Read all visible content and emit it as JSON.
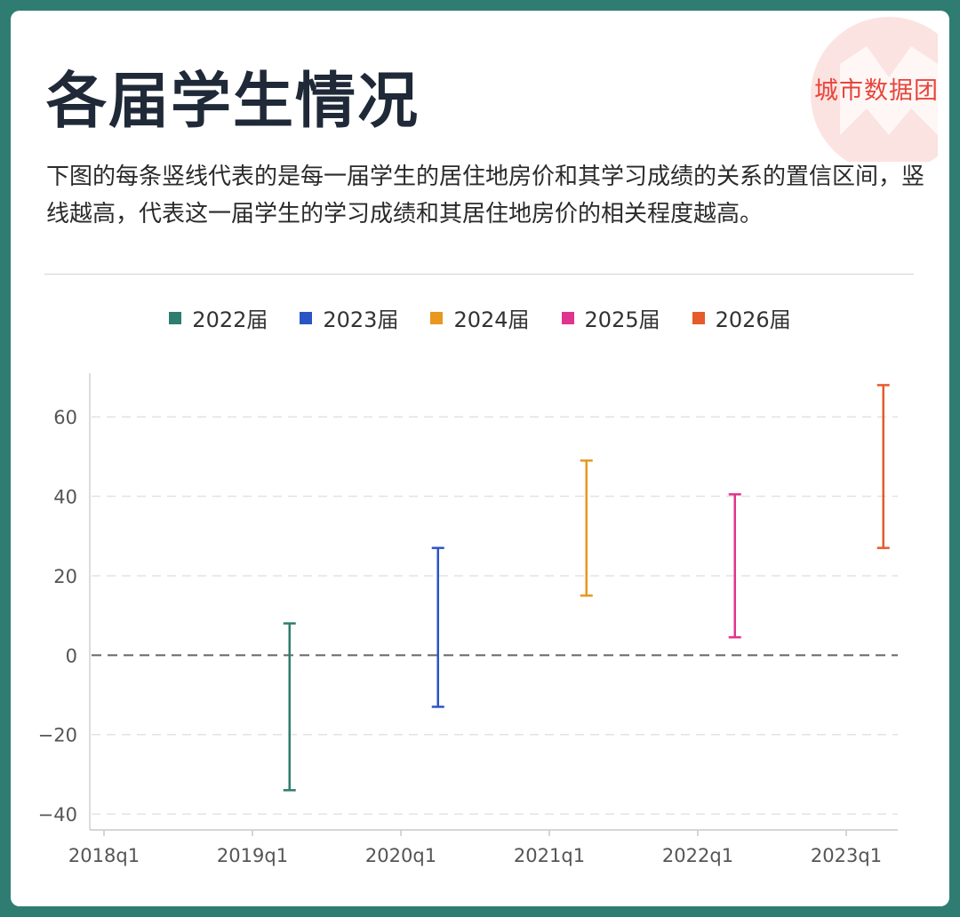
{
  "header": {
    "title": "各届学生情况",
    "brand": "城市数据团",
    "description": "下图的每条竖线代表的是每一届学生的居住地房价和其学习成绩的关系的置信区间，竖线越高，代表这一届学生的学习成绩和其居住地房价的相关程度越高。"
  },
  "chart_data": {
    "type": "errorbar",
    "x_categories": [
      "2018q1",
      "2019q1",
      "2020q1",
      "2021q1",
      "2022q1",
      "2023q1"
    ],
    "y_ticks": [
      "60",
      "40",
      "20",
      "0",
      "−20",
      "−40"
    ],
    "y_tick_values": [
      60,
      40,
      20,
      0,
      -20,
      -40
    ],
    "ylim": [
      -44,
      71
    ],
    "reference_line": 0,
    "grid": "horizontal-dashed",
    "legend_position": "top-center",
    "series": [
      {
        "name": "2022届",
        "color": "#2e7d6e",
        "x": "2019q1",
        "x_offset": 0.25,
        "low": -34,
        "high": 8
      },
      {
        "name": "2023届",
        "color": "#2b55c5",
        "x": "2020q1",
        "x_offset": 0.25,
        "low": -13,
        "high": 27
      },
      {
        "name": "2024届",
        "color": "#e8971f",
        "x": "2021q1",
        "x_offset": 0.25,
        "low": 15,
        "high": 49
      },
      {
        "name": "2025届",
        "color": "#e0358f",
        "x": "2022q1",
        "x_offset": 0.25,
        "low": 4.5,
        "high": 40.5
      },
      {
        "name": "2026届",
        "color": "#e55b2b",
        "x": "2023q1",
        "x_offset": 0.25,
        "low": 27,
        "high": 68
      }
    ]
  }
}
